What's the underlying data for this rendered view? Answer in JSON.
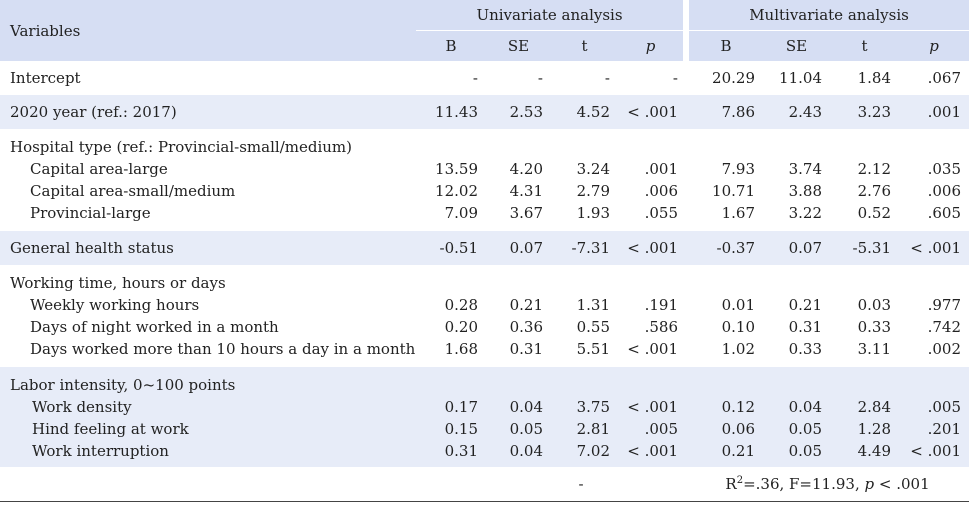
{
  "header": {
    "variables": "Variables",
    "univariate": "Univariate analysis",
    "multivariate": "Multivariate analysis",
    "cols": [
      "B",
      "SE",
      "t",
      "p"
    ]
  },
  "rows": {
    "intercept": {
      "label": "Intercept",
      "u": [
        "-",
        "-",
        "-",
        "-"
      ],
      "m": [
        "20.29",
        "11.04",
        "1.84",
        ".067"
      ]
    },
    "year": {
      "label": "2020 year (ref.: 2017)",
      "u": [
        "11.43",
        "2.53",
        "4.52",
        "< .001"
      ],
      "m": [
        "7.86",
        "2.43",
        "3.23",
        ".001"
      ]
    },
    "hospital": {
      "label": "Hospital type (ref.: Provincial-small/medium)",
      "items": [
        {
          "label": "Capital area-large",
          "u": [
            "13.59",
            "4.20",
            "3.24",
            ".001"
          ],
          "m": [
            "7.93",
            "3.74",
            "2.12",
            ".035"
          ]
        },
        {
          "label": "Capital area-small/medium",
          "u": [
            "12.02",
            "4.31",
            "2.79",
            ".006"
          ],
          "m": [
            "10.71",
            "3.88",
            "2.76",
            ".006"
          ]
        },
        {
          "label": "Provincial-large",
          "u": [
            "7.09",
            "3.67",
            "1.93",
            ".055"
          ],
          "m": [
            "1.67",
            "3.22",
            "0.52",
            ".605"
          ]
        }
      ]
    },
    "health": {
      "label": "General health status",
      "u": [
        "-0.51",
        "0.07",
        "-7.31",
        "< .001"
      ],
      "m": [
        "-0.37",
        "0.07",
        "-5.31",
        "< .001"
      ]
    },
    "working": {
      "label": "Working time, hours or days",
      "items": [
        {
          "label": "Weekly working hours",
          "u": [
            "0.28",
            "0.21",
            "1.31",
            ".191"
          ],
          "m": [
            "0.01",
            "0.21",
            "0.03",
            ".977"
          ]
        },
        {
          "label": "Days of night worked in a month",
          "u": [
            "0.20",
            "0.36",
            "0.55",
            ".586"
          ],
          "m": [
            "0.10",
            "0.31",
            "0.33",
            ".742"
          ]
        },
        {
          "label": "Days worked more than 10 hours a day in a month",
          "u": [
            "1.68",
            "0.31",
            "5.51",
            "< .001"
          ],
          "m": [
            "1.02",
            "0.33",
            "3.11",
            ".002"
          ]
        }
      ]
    },
    "labor": {
      "label": "Labor intensity, 0~100 points",
      "items": [
        {
          "label": "Work density",
          "u": [
            "0.17",
            "0.04",
            "3.75",
            "< .001"
          ],
          "m": [
            "0.12",
            "0.04",
            "2.84",
            ".005"
          ]
        },
        {
          "label": "Hind feeling at work",
          "u": [
            "0.15",
            "0.05",
            "2.81",
            ".005"
          ],
          "m": [
            "0.06",
            "0.05",
            "1.28",
            ".201"
          ]
        },
        {
          "label": "Work interruption",
          "u": [
            "0.31",
            "0.04",
            "7.02",
            "< .001"
          ],
          "m": [
            "0.21",
            "0.05",
            "4.49",
            "< .001"
          ]
        }
      ]
    }
  },
  "summary": {
    "univariate": "-",
    "r2_prefix": "R",
    "r2_sup": "2",
    "r2_value": "=.36,  F=11.93,",
    "p_label": "p",
    "p_value": "< .001"
  }
}
